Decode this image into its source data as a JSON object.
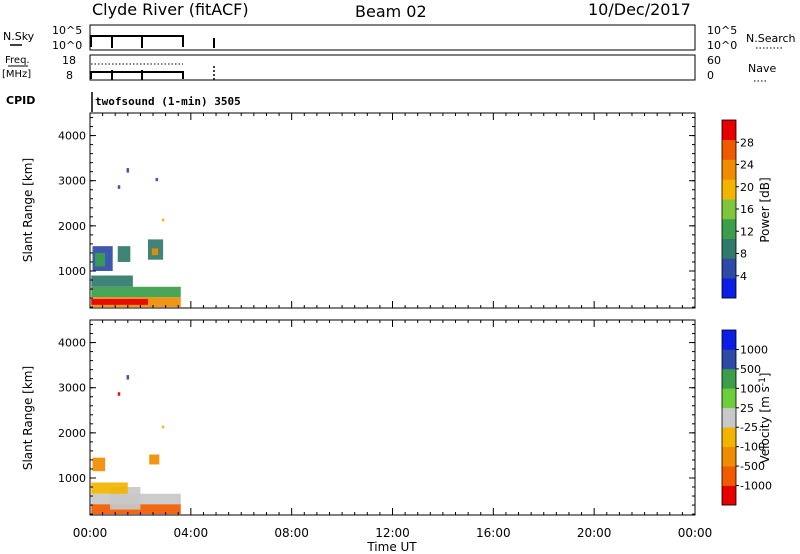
{
  "header": {
    "station": "Clyde River (fitACF)",
    "beam": "Beam 02",
    "date": "10/Dec/2017"
  },
  "panels": {
    "nsky": {
      "label": "N.Sky",
      "tick_top": "10^5",
      "tick_bottom": "10^0",
      "right_label": "N.Search",
      "right_tick_top": "10^5",
      "right_tick_bottom": "10^0"
    },
    "freq": {
      "label_top": "Freq.",
      "label_bottom": "[MHz]",
      "tick_top": "18",
      "tick_bottom": "8",
      "right_label": "Nave",
      "right_tick_top": "60",
      "right_tick_bottom": "0"
    },
    "cpid": {
      "label": "CPID",
      "text": "twofsound (1-min) 3505"
    }
  },
  "colors": {
    "power": [
      "#0a1ee6",
      "#2c4aa6",
      "#2f7a6a",
      "#3a9e4a",
      "#7fc63a",
      "#f2b400",
      "#f08c00",
      "#ee5a00",
      "#e60000"
    ],
    "velocity": [
      "#e60000",
      "#f05a00",
      "#f08c00",
      "#f2b400",
      "#c8c8c8",
      "#6ccf3a",
      "#3a9e4a",
      "#2c4aa6",
      "#0a1ee6"
    ]
  },
  "chart_data": [
    {
      "type": "heatmap",
      "title": "Power",
      "ylabel": "Slant Range [km]",
      "xlabel": "Time UT",
      "ylim": [
        180,
        4500
      ],
      "yticks": [
        "1000",
        "2000",
        "3000",
        "4000"
      ],
      "colorbar": {
        "label": "Power [dB]",
        "ticks": [
          "4",
          "8",
          "12",
          "16",
          "20",
          "24",
          "28"
        ],
        "range": [
          0,
          32
        ]
      },
      "cells": [
        {
          "t0": 0.05,
          "t1": 3.6,
          "r0": 200,
          "r1": 420,
          "v": 24
        },
        {
          "t0": 0.05,
          "t1": 2.3,
          "r0": 250,
          "r1": 380,
          "v": 30
        },
        {
          "t0": 0.05,
          "t1": 3.6,
          "r0": 420,
          "r1": 650,
          "v": 14
        },
        {
          "t0": 0.05,
          "t1": 1.7,
          "r0": 650,
          "r1": 900,
          "v": 10
        },
        {
          "t0": 0.1,
          "t1": 0.9,
          "r0": 1000,
          "r1": 1550,
          "v": 6
        },
        {
          "t0": 0.2,
          "t1": 0.6,
          "r0": 1100,
          "r1": 1400,
          "v": 14
        },
        {
          "t0": 1.1,
          "t1": 1.6,
          "r0": 1200,
          "r1": 1550,
          "v": 8
        },
        {
          "t0": 2.3,
          "t1": 2.9,
          "r0": 1250,
          "r1": 1700,
          "v": 10
        },
        {
          "t0": 2.45,
          "t1": 2.7,
          "r0": 1350,
          "r1": 1500,
          "v": 22
        },
        {
          "t0": 1.45,
          "t1": 1.55,
          "r0": 3180,
          "r1": 3280,
          "v": 4
        },
        {
          "t0": 1.1,
          "t1": 1.2,
          "r0": 2820,
          "r1": 2900,
          "v": 4
        },
        {
          "t0": 2.6,
          "t1": 2.7,
          "r0": 2990,
          "r1": 3060,
          "v": 4
        },
        {
          "t0": 2.85,
          "t1": 2.95,
          "r0": 2100,
          "r1": 2160,
          "v": 20
        }
      ]
    },
    {
      "type": "heatmap",
      "title": "Velocity",
      "ylabel": "Slant Range [km]",
      "xlabel": "Time UT",
      "ylim": [
        180,
        4500
      ],
      "yticks": [
        "1000",
        "2000",
        "3000",
        "4000"
      ],
      "xticks": [
        "00:00",
        "04:00",
        "08:00",
        "12:00",
        "16:00",
        "20:00",
        "00:00"
      ],
      "xlim": [
        0,
        24
      ],
      "colorbar": {
        "label": "Velocity [m s-1]",
        "ticks": [
          "-1000",
          "-500",
          "-100",
          "-25",
          "25",
          "100",
          "500",
          "1000"
        ]
      },
      "cells": [
        {
          "t0": 0.05,
          "t1": 3.6,
          "r0": 200,
          "r1": 420,
          "v": 1
        },
        {
          "t0": 0.05,
          "t1": 3.6,
          "r0": 420,
          "r1": 650,
          "v": 4
        },
        {
          "t0": 0.8,
          "t1": 2.0,
          "r0": 300,
          "r1": 800,
          "v": 4
        },
        {
          "t0": 0.05,
          "t1": 1.5,
          "r0": 650,
          "r1": 900,
          "v": 3
        },
        {
          "t0": 0.1,
          "t1": 0.6,
          "r0": 1150,
          "r1": 1450,
          "v": 2
        },
        {
          "t0": 2.35,
          "t1": 2.75,
          "r0": 1300,
          "r1": 1520,
          "v": 2
        },
        {
          "t0": 1.45,
          "t1": 1.55,
          "r0": 3180,
          "r1": 3280,
          "v": 7
        },
        {
          "t0": 1.1,
          "t1": 1.2,
          "r0": 2820,
          "r1": 2900,
          "v": 0
        },
        {
          "t0": 2.85,
          "t1": 2.95,
          "r0": 2100,
          "r1": 2160,
          "v": 3
        }
      ]
    }
  ]
}
